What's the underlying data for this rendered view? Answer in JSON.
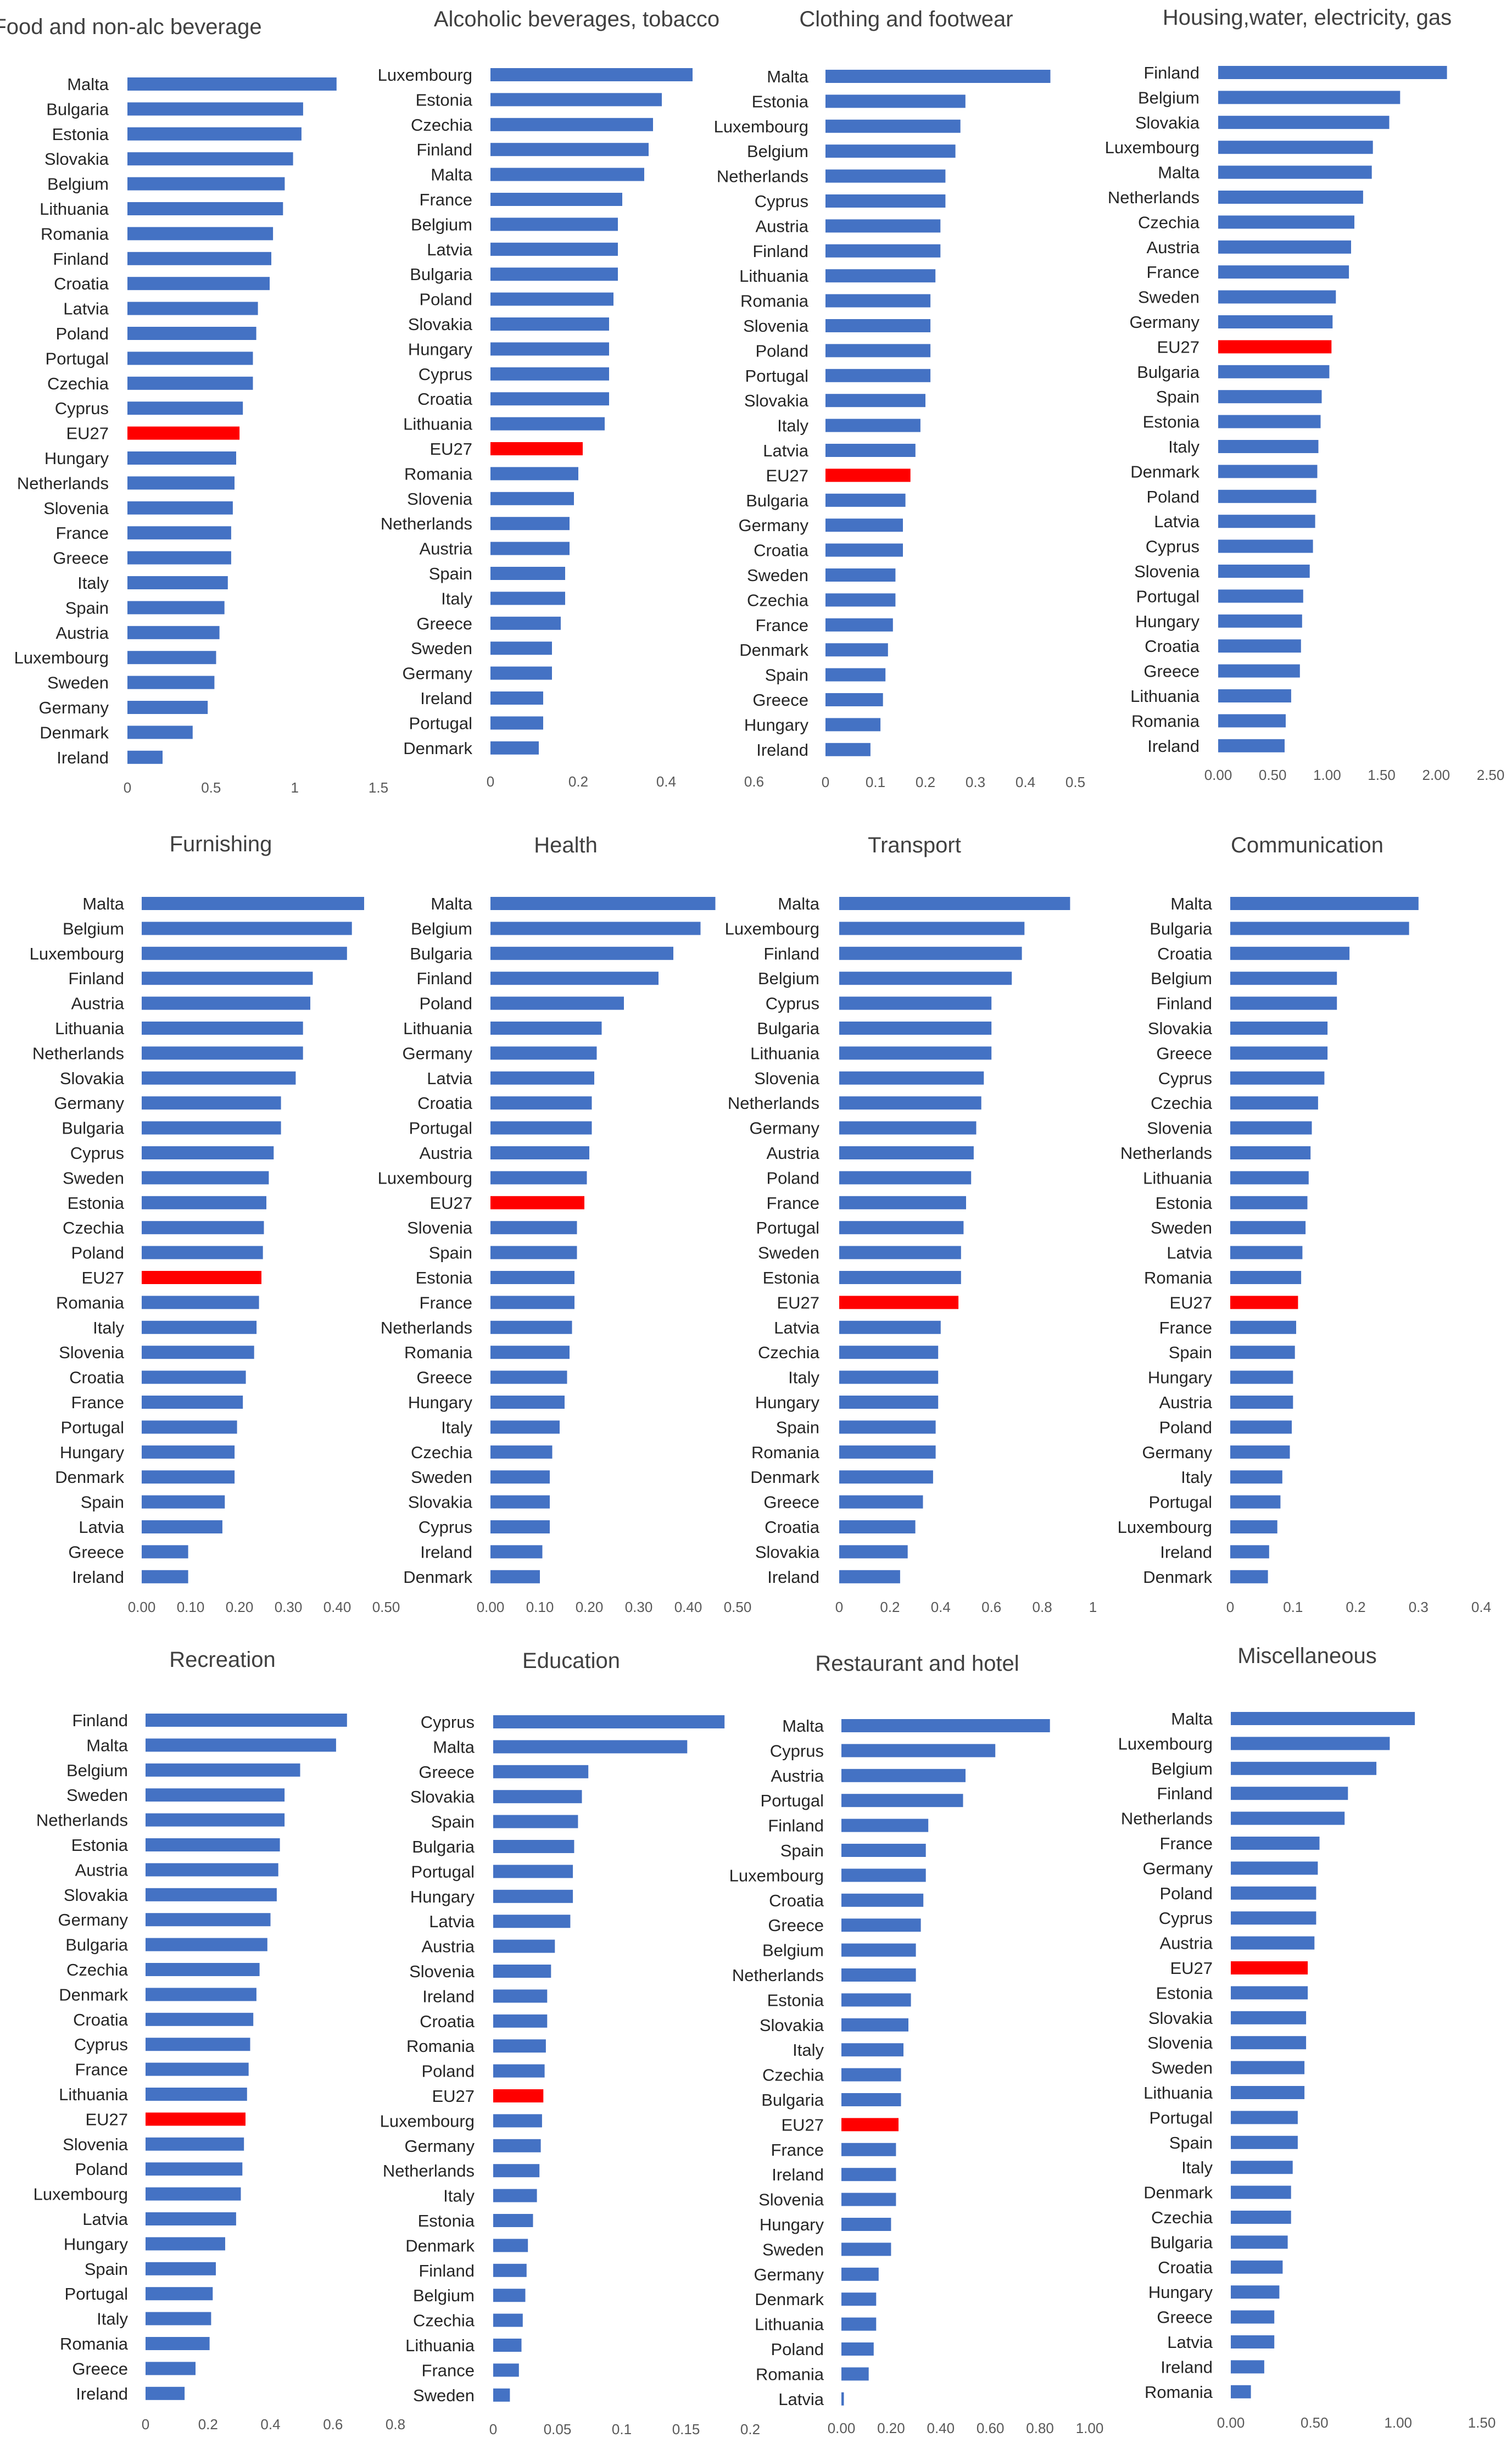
{
  "colors": {
    "bar": "#4472C4",
    "highlight": "#FF0000",
    "text": "#262626",
    "title": "#404040",
    "tick": "#595959"
  },
  "chart_data": [
    {
      "type": "bar",
      "orientation": "horizontal",
      "title": "Food and non-alc beverage",
      "categories": [
        "Malta",
        "Bulgaria",
        "Estonia",
        "Slovakia",
        "Belgium",
        "Lithuania",
        "Romania",
        "Finland",
        "Croatia",
        "Latvia",
        "Poland",
        "Portugal",
        "Czechia",
        "Cyprus",
        "EU27",
        "Hungary",
        "Netherlands",
        "Slovenia",
        "France",
        "Greece",
        "Italy",
        "Spain",
        "Austria",
        "Luxembourg",
        "Sweden",
        "Germany",
        "Denmark",
        "Ireland"
      ],
      "values": [
        1.25,
        1.05,
        1.04,
        0.99,
        0.94,
        0.93,
        0.87,
        0.86,
        0.85,
        0.78,
        0.77,
        0.75,
        0.75,
        0.69,
        0.67,
        0.65,
        0.64,
        0.63,
        0.62,
        0.62,
        0.6,
        0.58,
        0.55,
        0.53,
        0.52,
        0.48,
        0.39,
        0.21
      ],
      "highlight": "EU27",
      "xlim": [
        0,
        1.5
      ],
      "xticks": [
        "0",
        "0.5",
        "1",
        "1.5"
      ]
    },
    {
      "type": "bar",
      "orientation": "horizontal",
      "title": "Alcoholic beverages, tobacco",
      "categories": [
        "Luxembourg",
        "Estonia",
        "Czechia",
        "Finland",
        "Malta",
        "France",
        "Belgium",
        "Latvia",
        "Bulgaria",
        "Poland",
        "Slovakia",
        "Hungary",
        "Cyprus",
        "Croatia",
        "Lithuania",
        "EU27",
        "Romania",
        "Slovenia",
        "Netherlands",
        "Austria",
        "Spain",
        "Italy",
        "Greece",
        "Sweden",
        "Germany",
        "Ireland",
        "Portugal",
        "Denmark"
      ],
      "values": [
        0.46,
        0.39,
        0.37,
        0.36,
        0.35,
        0.3,
        0.29,
        0.29,
        0.29,
        0.28,
        0.27,
        0.27,
        0.27,
        0.27,
        0.26,
        0.21,
        0.2,
        0.19,
        0.18,
        0.18,
        0.17,
        0.17,
        0.16,
        0.14,
        0.14,
        0.12,
        0.12,
        0.11
      ],
      "highlight": "EU27",
      "xlim": [
        0,
        0.6
      ],
      "xticks": [
        "0",
        "0.2",
        "0.4",
        "0.6"
      ]
    },
    {
      "type": "bar",
      "orientation": "horizontal",
      "title": "Clothing and footwear",
      "categories": [
        "Malta",
        "Estonia",
        "Luxembourg",
        "Belgium",
        "Netherlands",
        "Cyprus",
        "Austria",
        "Finland",
        "Lithuania",
        "Romania",
        "Slovenia",
        "Poland",
        "Portugal",
        "Slovakia",
        "Italy",
        "Latvia",
        "EU27",
        "Bulgaria",
        "Germany",
        "Croatia",
        "Sweden",
        "Czechia",
        "France",
        "Denmark",
        "Spain",
        "Greece",
        "Hungary",
        "Ireland"
      ],
      "values": [
        0.45,
        0.28,
        0.27,
        0.26,
        0.24,
        0.24,
        0.23,
        0.23,
        0.22,
        0.21,
        0.21,
        0.21,
        0.21,
        0.2,
        0.19,
        0.18,
        0.17,
        0.16,
        0.155,
        0.155,
        0.14,
        0.14,
        0.135,
        0.125,
        0.12,
        0.115,
        0.11,
        0.09
      ],
      "highlight": "EU27",
      "xlim": [
        0,
        0.5
      ],
      "xticks": [
        "0",
        "0.1",
        "0.2",
        "0.3",
        "0.4",
        "0.5"
      ]
    },
    {
      "type": "bar",
      "orientation": "horizontal",
      "title": "Housing,water, electricity, gas",
      "categories": [
        "Finland",
        "Belgium",
        "Slovakia",
        "Luxembourg",
        "Malta",
        "Netherlands",
        "Czechia",
        "Austria",
        "France",
        "Sweden",
        "Germany",
        "EU27",
        "Bulgaria",
        "Spain",
        "Estonia",
        "Italy",
        "Denmark",
        "Poland",
        "Latvia",
        "Cyprus",
        "Slovenia",
        "Portugal",
        "Hungary",
        "Croatia",
        "Greece",
        "Lithuania",
        "Romania",
        "Ireland"
      ],
      "values": [
        2.1,
        1.67,
        1.57,
        1.42,
        1.41,
        1.33,
        1.25,
        1.22,
        1.2,
        1.08,
        1.05,
        1.04,
        1.02,
        0.95,
        0.94,
        0.92,
        0.91,
        0.9,
        0.89,
        0.87,
        0.84,
        0.78,
        0.77,
        0.76,
        0.75,
        0.67,
        0.62,
        0.61
      ],
      "highlight": "EU27",
      "xlim": [
        0,
        2.5
      ],
      "xticks": [
        "0.00",
        "0.50",
        "1.00",
        "1.50",
        "2.00",
        "2.50"
      ]
    },
    {
      "type": "bar",
      "orientation": "horizontal",
      "title": "Furnishing",
      "categories": [
        "Malta",
        "Belgium",
        "Luxembourg",
        "Finland",
        "Austria",
        "Lithuania",
        "Netherlands",
        "Slovakia",
        "Germany",
        "Bulgaria",
        "Cyprus",
        "Sweden",
        "Estonia",
        "Czechia",
        "Poland",
        "EU27",
        "Romania",
        "Italy",
        "Slovenia",
        "Croatia",
        "France",
        "Portugal",
        "Hungary",
        "Denmark",
        "Spain",
        "Latvia",
        "Greece",
        "Ireland"
      ],
      "values": [
        0.455,
        0.43,
        0.42,
        0.35,
        0.345,
        0.33,
        0.33,
        0.315,
        0.285,
        0.285,
        0.27,
        0.26,
        0.255,
        0.25,
        0.248,
        0.245,
        0.24,
        0.235,
        0.23,
        0.213,
        0.207,
        0.195,
        0.19,
        0.19,
        0.17,
        0.165,
        0.095,
        0.095
      ],
      "highlight": "EU27",
      "xlim": [
        0,
        0.5
      ],
      "xticks": [
        "0.00",
        "0.10",
        "0.20",
        "0.30",
        "0.40",
        "0.50"
      ]
    },
    {
      "type": "bar",
      "orientation": "horizontal",
      "title": "Health",
      "categories": [
        "Malta",
        "Belgium",
        "Bulgaria",
        "Finland",
        "Poland",
        "Lithuania",
        "Germany",
        "Latvia",
        "Croatia",
        "Portugal",
        "Austria",
        "Luxembourg",
        "EU27",
        "Slovenia",
        "Spain",
        "Estonia",
        "France",
        "Netherlands",
        "Romania",
        "Greece",
        "Hungary",
        "Italy",
        "Czechia",
        "Sweden",
        "Slovakia",
        "Cyprus",
        "Ireland",
        "Denmark"
      ],
      "values": [
        0.455,
        0.425,
        0.37,
        0.34,
        0.27,
        0.225,
        0.215,
        0.21,
        0.205,
        0.205,
        0.2,
        0.195,
        0.19,
        0.175,
        0.175,
        0.17,
        0.17,
        0.165,
        0.16,
        0.155,
        0.15,
        0.14,
        0.125,
        0.12,
        0.12,
        0.12,
        0.105,
        0.1
      ],
      "highlight": "EU27",
      "xlim": [
        0,
        0.5
      ],
      "xticks": [
        "0.00",
        "0.10",
        "0.20",
        "0.30",
        "0.40",
        "0.50"
      ]
    },
    {
      "type": "bar",
      "orientation": "horizontal",
      "title": "Transport",
      "categories": [
        "Malta",
        "Luxembourg",
        "Finland",
        "Belgium",
        "Cyprus",
        "Bulgaria",
        "Lithuania",
        "Slovenia",
        "Netherlands",
        "Germany",
        "Austria",
        "Poland",
        "France",
        "Portugal",
        "Sweden",
        "Estonia",
        "EU27",
        "Latvia",
        "Czechia",
        "Italy",
        "Hungary",
        "Spain",
        "Romania",
        "Denmark",
        "Greece",
        "Croatia",
        "Slovakia",
        "Ireland"
      ],
      "values": [
        0.91,
        0.73,
        0.72,
        0.68,
        0.6,
        0.6,
        0.6,
        0.57,
        0.56,
        0.54,
        0.53,
        0.52,
        0.5,
        0.49,
        0.48,
        0.48,
        0.47,
        0.4,
        0.39,
        0.39,
        0.39,
        0.38,
        0.38,
        0.37,
        0.33,
        0.3,
        0.27,
        0.24
      ],
      "highlight": "EU27",
      "xlim": [
        0,
        1
      ],
      "xticks": [
        "0",
        "0.2",
        "0.4",
        "0.6",
        "0.8",
        "1"
      ]
    },
    {
      "type": "bar",
      "orientation": "horizontal",
      "title": "Communication",
      "categories": [
        "Malta",
        "Bulgaria",
        "Croatia",
        "Belgium",
        "Finland",
        "Slovakia",
        "Greece",
        "Cyprus",
        "Czechia",
        "Slovenia",
        "Netherlands",
        "Lithuania",
        "Estonia",
        "Sweden",
        "Latvia",
        "Romania",
        "EU27",
        "France",
        "Spain",
        "Hungary",
        "Austria",
        "Poland",
        "Germany",
        "Italy",
        "Portugal",
        "Luxembourg",
        "Ireland",
        "Denmark"
      ],
      "values": [
        0.3,
        0.285,
        0.19,
        0.17,
        0.17,
        0.155,
        0.155,
        0.15,
        0.14,
        0.13,
        0.128,
        0.125,
        0.123,
        0.12,
        0.115,
        0.113,
        0.108,
        0.105,
        0.103,
        0.1,
        0.1,
        0.098,
        0.095,
        0.083,
        0.08,
        0.075,
        0.062,
        0.06
      ],
      "highlight": "EU27",
      "xlim": [
        0,
        0.4
      ],
      "xticks": [
        "0",
        "0.1",
        "0.2",
        "0.3",
        "0.4"
      ]
    },
    {
      "type": "bar",
      "orientation": "horizontal",
      "title": "Recreation",
      "categories": [
        "Finland",
        "Malta",
        "Belgium",
        "Sweden",
        "Netherlands",
        "Estonia",
        "Austria",
        "Slovakia",
        "Germany",
        "Bulgaria",
        "Czechia",
        "Denmark",
        "Croatia",
        "Cyprus",
        "France",
        "Lithuania",
        "EU27",
        "Slovenia",
        "Poland",
        "Luxembourg",
        "Latvia",
        "Hungary",
        "Spain",
        "Portugal",
        "Italy",
        "Romania",
        "Greece",
        "Ireland"
      ],
      "values": [
        0.645,
        0.61,
        0.495,
        0.445,
        0.445,
        0.43,
        0.425,
        0.42,
        0.4,
        0.39,
        0.365,
        0.355,
        0.345,
        0.335,
        0.33,
        0.325,
        0.32,
        0.315,
        0.31,
        0.305,
        0.29,
        0.255,
        0.225,
        0.215,
        0.21,
        0.205,
        0.16,
        0.125
      ],
      "highlight": "EU27",
      "xlim": [
        0,
        0.8
      ],
      "xticks": [
        "0",
        "0.2",
        "0.4",
        "0.6",
        "0.8"
      ]
    },
    {
      "type": "bar",
      "orientation": "horizontal",
      "title": "Education",
      "categories": [
        "Cyprus",
        "Malta",
        "Greece",
        "Slovakia",
        "Spain",
        "Bulgaria",
        "Portugal",
        "Hungary",
        "Latvia",
        "Austria",
        "Slovenia",
        "Ireland",
        "Croatia",
        "Romania",
        "Poland",
        "EU27",
        "Luxembourg",
        "Germany",
        "Netherlands",
        "Italy",
        "Estonia",
        "Denmark",
        "Finland",
        "Belgium",
        "Czechia",
        "Lithuania",
        "France",
        "Sweden"
      ],
      "values": [
        0.18,
        0.151,
        0.074,
        0.069,
        0.066,
        0.063,
        0.062,
        0.062,
        0.06,
        0.048,
        0.045,
        0.042,
        0.042,
        0.041,
        0.04,
        0.039,
        0.038,
        0.037,
        0.036,
        0.034,
        0.031,
        0.027,
        0.026,
        0.025,
        0.023,
        0.022,
        0.02,
        0.013
      ],
      "highlight": "EU27",
      "xlim": [
        0,
        0.2
      ],
      "xticks": [
        "0",
        "0.05",
        "0.1",
        "0.15",
        "0.2"
      ]
    },
    {
      "type": "bar",
      "orientation": "horizontal",
      "title": "Restaurant and hotel",
      "categories": [
        "Malta",
        "Cyprus",
        "Austria",
        "Portugal",
        "Finland",
        "Spain",
        "Luxembourg",
        "Croatia",
        "Greece",
        "Belgium",
        "Netherlands",
        "Estonia",
        "Slovakia",
        "Italy",
        "Czechia",
        "Bulgaria",
        "EU27",
        "France",
        "Ireland",
        "Slovenia",
        "Hungary",
        "Sweden",
        "Germany",
        "Denmark",
        "Lithuania",
        "Poland",
        "Romania",
        "Latvia"
      ],
      "values": [
        0.84,
        0.62,
        0.5,
        0.49,
        0.35,
        0.34,
        0.34,
        0.33,
        0.32,
        0.3,
        0.3,
        0.28,
        0.27,
        0.25,
        0.24,
        0.24,
        0.23,
        0.22,
        0.22,
        0.22,
        0.2,
        0.2,
        0.15,
        0.14,
        0.14,
        0.13,
        0.11,
        0.01
      ],
      "highlight": "EU27",
      "xlim": [
        0,
        1
      ],
      "xticks": [
        "0.00",
        "0.20",
        "0.40",
        "0.60",
        "0.80",
        "1.00"
      ]
    },
    {
      "type": "bar",
      "orientation": "horizontal",
      "title": "Miscellaneous",
      "categories": [
        "Malta",
        "Luxembourg",
        "Belgium",
        "Finland",
        "Netherlands",
        "France",
        "Germany",
        "Poland",
        "Cyprus",
        "Austria",
        "EU27",
        "Estonia",
        "Slovakia",
        "Slovenia",
        "Sweden",
        "Lithuania",
        "Portugal",
        "Spain",
        "Italy",
        "Denmark",
        "Czechia",
        "Bulgaria",
        "Croatia",
        "Hungary",
        "Greece",
        "Latvia",
        "Ireland",
        "Romania"
      ],
      "values": [
        1.1,
        0.95,
        0.87,
        0.7,
        0.68,
        0.53,
        0.52,
        0.51,
        0.51,
        0.5,
        0.46,
        0.46,
        0.45,
        0.45,
        0.44,
        0.44,
        0.4,
        0.4,
        0.37,
        0.36,
        0.36,
        0.34,
        0.31,
        0.29,
        0.26,
        0.26,
        0.2,
        0.12
      ],
      "highlight": "EU27",
      "xlim": [
        0,
        1.5
      ],
      "xticks": [
        "0.00",
        "0.50",
        "1.00",
        "1.50"
      ]
    }
  ]
}
